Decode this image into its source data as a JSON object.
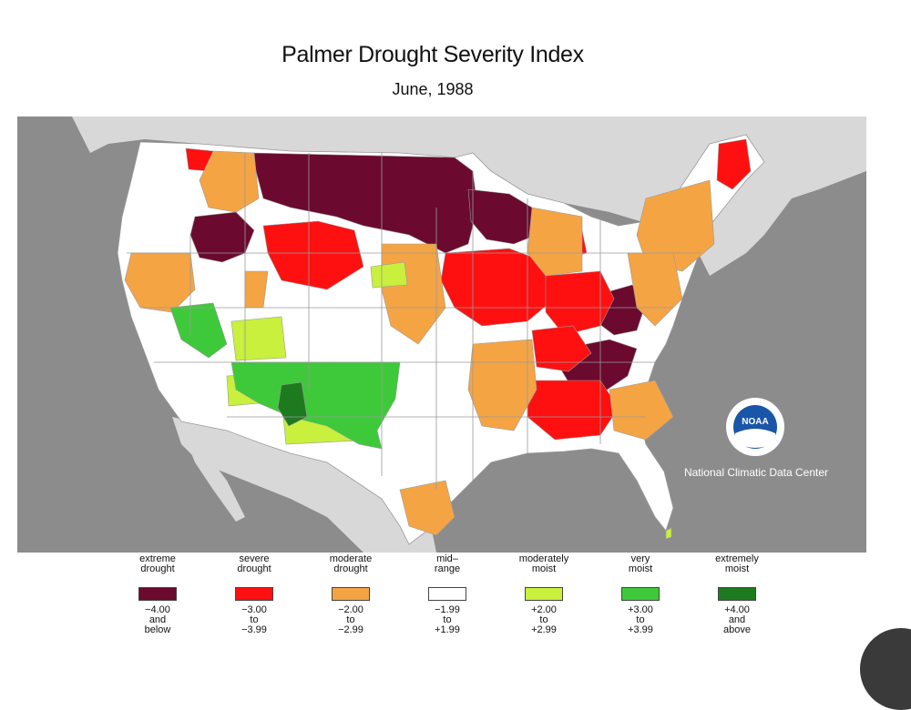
{
  "title": "Palmer Drought Severity Index",
  "subtitle": "June, 1988",
  "logo": {
    "text": "NOAA",
    "label": "National Climatic Data Center"
  },
  "colors": {
    "extreme_drought": "#6b0a2e",
    "severe_drought": "#ff1010",
    "moderate_drought": "#f5a444",
    "mid_range": "#ffffff",
    "moderately_moist": "#c8f03c",
    "very_moist": "#3ec93a",
    "extremely_moist": "#1e7a1e",
    "ocean": "#8c8c8c",
    "land_outside": "#d8d8d8"
  },
  "legend": [
    {
      "label": "extreme\ndrought",
      "range": "−4.00\nand\nbelow",
      "color": "#6b0a2e"
    },
    {
      "label": "severe\ndrought",
      "range": "−3.00\nto\n−3.99",
      "color": "#ff1010"
    },
    {
      "label": "moderate\ndrought",
      "range": "−2.00\nto\n−2.99",
      "color": "#f5a444"
    },
    {
      "label": "mid–\nrange",
      "range": "−1.99\nto\n+1.99",
      "color": "#ffffff"
    },
    {
      "label": "moderately\nmoist",
      "range": "+2.00\nto\n+2.99",
      "color": "#c8f03c"
    },
    {
      "label": "very\nmoist",
      "range": "+3.00\nto\n+3.99",
      "color": "#3ec93a"
    },
    {
      "label": "extremely\nmoist",
      "range": "+4.00\nand\nabove",
      "color": "#1e7a1e"
    }
  ]
}
